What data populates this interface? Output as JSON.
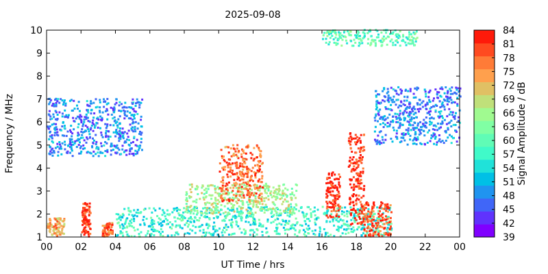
{
  "chart_data": {
    "type": "heatmap",
    "title": "2025-09-08",
    "xlabel": "UT Time / hrs",
    "ylabel": "Frequency / MHz",
    "xlim": [
      0,
      24
    ],
    "ylim": [
      1,
      10
    ],
    "x_ticks": [
      "00",
      "02",
      "04",
      "06",
      "08",
      "10",
      "12",
      "14",
      "16",
      "18",
      "20",
      "22",
      "00"
    ],
    "y_ticks": [
      "1",
      "2",
      "3",
      "4",
      "5",
      "6",
      "7",
      "8",
      "9",
      "10"
    ],
    "colorbar": {
      "label": "Signal Amplitude / dB",
      "range": [
        39,
        84
      ],
      "ticks": [
        "39",
        "42",
        "45",
        "48",
        "51",
        "54",
        "57",
        "60",
        "63",
        "66",
        "69",
        "72",
        "75",
        "78",
        "81",
        "84"
      ],
      "colors": [
        "#8000ff",
        "#6033fd",
        "#4066f8",
        "#2094f0",
        "#00c0e6",
        "#20e2d9",
        "#40fac9",
        "#60fcb6",
        "#80ffa4",
        "#a0fa90",
        "#c0e07a",
        "#e0c064",
        "#ffa04d",
        "#ff7b37",
        "#ff4a20",
        "#ff1a0a"
      ]
    },
    "features": [
      {
        "t_start": 0.0,
        "t_end": 1.0,
        "f_low": 1.0,
        "f_high": 1.8,
        "level": 75
      },
      {
        "t_start": 2.0,
        "t_end": 2.5,
        "f_low": 1.0,
        "f_high": 2.5,
        "level": 82
      },
      {
        "t_start": 3.2,
        "t_end": 3.8,
        "f_low": 1.0,
        "f_high": 1.6,
        "level": 78
      },
      {
        "t_start": 4.0,
        "t_end": 20.0,
        "f_low": 1.0,
        "f_high": 2.3,
        "level": 57
      },
      {
        "t_start": 8.0,
        "t_end": 14.5,
        "f_low": 2.0,
        "f_high": 3.3,
        "level": 66
      },
      {
        "t_start": 10.0,
        "t_end": 12.5,
        "f_low": 2.5,
        "f_high": 5.0,
        "level": 78
      },
      {
        "t_start": 16.2,
        "t_end": 17.0,
        "f_low": 1.8,
        "f_high": 3.8,
        "level": 82
      },
      {
        "t_start": 17.5,
        "t_end": 18.4,
        "f_low": 1.5,
        "f_high": 5.5,
        "level": 82
      },
      {
        "t_start": 18.4,
        "t_end": 20.0,
        "f_low": 1.0,
        "f_high": 2.5,
        "level": 80
      },
      {
        "t_start": 0.0,
        "t_end": 5.5,
        "f_low": 4.5,
        "f_high": 7.0,
        "level": 48
      },
      {
        "t_start": 19.0,
        "t_end": 24.0,
        "f_low": 5.0,
        "f_high": 7.5,
        "level": 48
      },
      {
        "t_start": 16.0,
        "t_end": 21.5,
        "f_low": 9.3,
        "f_high": 10.0,
        "level": 60
      }
    ]
  }
}
